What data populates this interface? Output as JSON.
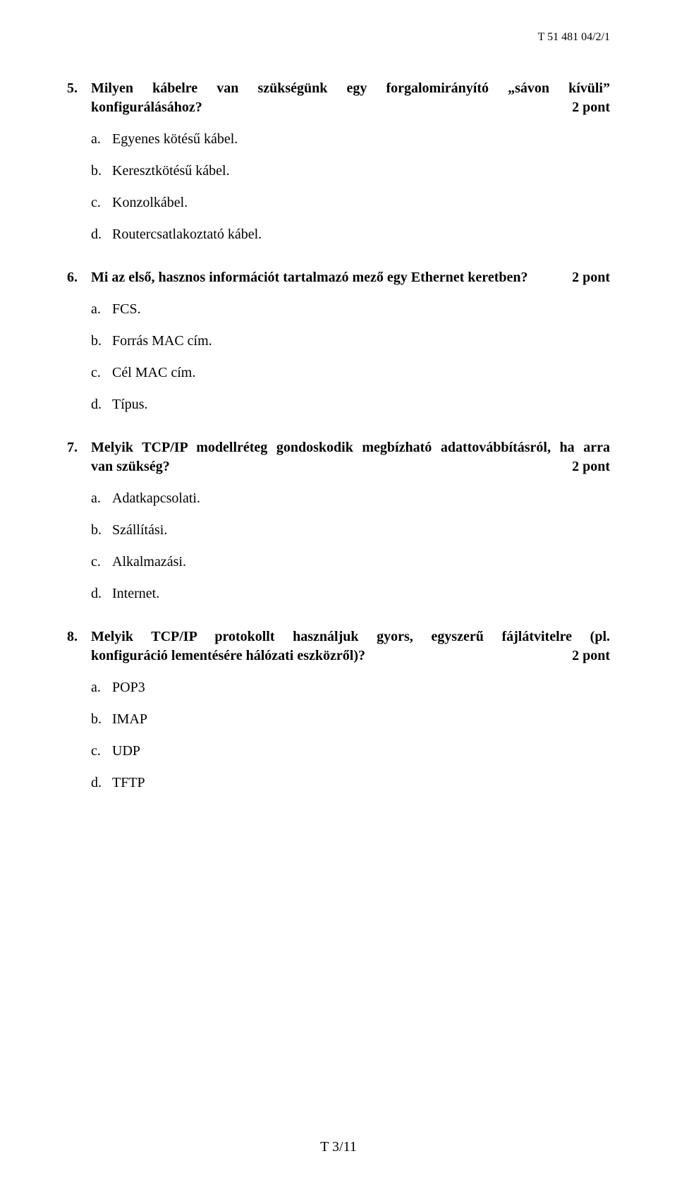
{
  "header": {
    "code": "T 51 481 04/2/1"
  },
  "questions": [
    {
      "num": "5.",
      "text_line1": "Milyen kábelre van szükségünk egy forgalomirányító „sávon kívüli”",
      "text_line2": "konfigurálásához?",
      "points": "2 pont",
      "layout": "two-line-justify",
      "options": [
        {
          "letter": "a.",
          "text": "Egyenes kötésű kábel."
        },
        {
          "letter": "b.",
          "text": "Keresztkötésű kábel."
        },
        {
          "letter": "c.",
          "text": "Konzolkábel."
        },
        {
          "letter": "d.",
          "text": "Routercsatlakoztató kábel."
        }
      ]
    },
    {
      "num": "6.",
      "text": "Mi az első, hasznos információt tartalmazó mező egy Ethernet keretben?",
      "points": "2 pont",
      "layout": "inline",
      "options": [
        {
          "letter": "a.",
          "text": "FCS."
        },
        {
          "letter": "b.",
          "text": "Forrás MAC cím."
        },
        {
          "letter": "c.",
          "text": "Cél MAC cím."
        },
        {
          "letter": "d.",
          "text": "Típus."
        }
      ]
    },
    {
      "num": "7.",
      "text_line1": "Melyik TCP/IP modellréteg gondoskodik megbízható adattovábbításról, ha arra",
      "text_line2": "van szükség?",
      "points": "2 pont",
      "layout": "two-line-justify",
      "options": [
        {
          "letter": "a.",
          "text": "Adatkapcsolati."
        },
        {
          "letter": "b.",
          "text": "Szállítási."
        },
        {
          "letter": "c.",
          "text": "Alkalmazási."
        },
        {
          "letter": "d.",
          "text": "Internet."
        }
      ]
    },
    {
      "num": "8.",
      "text_line1": "Melyik TCP/IP protokollt használjuk gyors, egyszerű fájlátvitelre (pl.",
      "text_line2": "konfiguráció lementésére hálózati eszközről)?",
      "points": "2 pont",
      "layout": "two-line-justify",
      "options": [
        {
          "letter": "a.",
          "text": "POP3"
        },
        {
          "letter": "b.",
          "text": "IMAP"
        },
        {
          "letter": "c.",
          "text": "UDP"
        },
        {
          "letter": "d.",
          "text": "TFTP"
        }
      ]
    }
  ],
  "footer": {
    "page": "T 3/11"
  }
}
